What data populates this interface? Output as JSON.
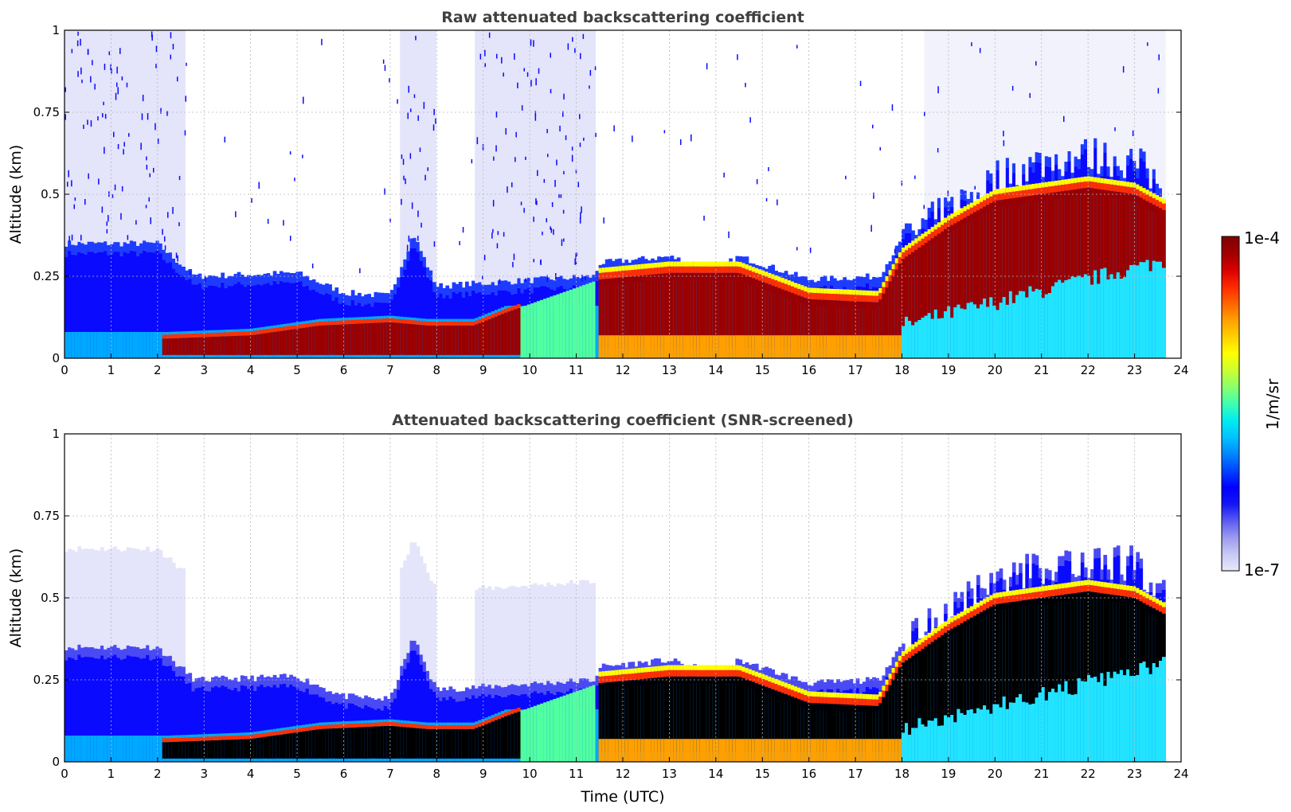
{
  "chart_data": [
    {
      "type": "heatmap",
      "title": "Raw attenuated backscattering coefficient",
      "xlabel": "",
      "ylabel": "Altitude (km)",
      "xlim": [
        0,
        24
      ],
      "ylim": [
        0,
        1
      ],
      "xticks": [
        "0",
        "1",
        "2",
        "3",
        "4",
        "5",
        "6",
        "7",
        "8",
        "9",
        "10",
        "11",
        "12",
        "13",
        "14",
        "15",
        "16",
        "17",
        "18",
        "19",
        "20",
        "21",
        "22",
        "23",
        "24"
      ],
      "yticks": [
        "0",
        "0.25",
        "0.5",
        "0.75",
        "1"
      ],
      "grid": true,
      "data_end_time": 23.65,
      "layer_top_km": [
        [
          0,
          0.35
        ],
        [
          2,
          0.35
        ],
        [
          2.8,
          0.25
        ],
        [
          5,
          0.26
        ],
        [
          6,
          0.2
        ],
        [
          7,
          0.19
        ],
        [
          7.5,
          0.38
        ],
        [
          8,
          0.22
        ],
        [
          11.4,
          0.25
        ],
        [
          11.5,
          0.29
        ],
        [
          13,
          0.31
        ],
        [
          14,
          0.27
        ],
        [
          14.5,
          0.31
        ],
        [
          16,
          0.24
        ],
        [
          17.5,
          0.25
        ],
        [
          18,
          0.36
        ],
        [
          19,
          0.45
        ],
        [
          20,
          0.55
        ],
        [
          21,
          0.6
        ],
        [
          22,
          0.62
        ],
        [
          23,
          0.6
        ],
        [
          23.65,
          0.52
        ]
      ],
      "high_backscatter_top_km": [
        [
          2.2,
          0.06
        ],
        [
          4,
          0.07
        ],
        [
          5.5,
          0.1
        ],
        [
          7,
          0.11
        ],
        [
          7.8,
          0.1
        ],
        [
          8.8,
          0.1
        ],
        [
          9.5,
          0.14
        ],
        [
          11.5,
          0.24
        ],
        [
          13,
          0.26
        ],
        [
          14.5,
          0.26
        ],
        [
          16,
          0.18
        ],
        [
          17.5,
          0.17
        ],
        [
          18,
          0.3
        ],
        [
          19,
          0.4
        ],
        [
          20,
          0.48
        ],
        [
          21,
          0.5
        ],
        [
          22,
          0.52
        ],
        [
          23,
          0.5
        ],
        [
          23.65,
          0.45
        ]
      ],
      "color_range": [
        "1e-7",
        "1e-4"
      ],
      "units": "1/m/sr"
    },
    {
      "type": "heatmap",
      "title": "Attenuated backscattering coefficient (SNR-screened)",
      "xlabel": "Time (UTC)",
      "ylabel": "Altitude (km)",
      "xlim": [
        0,
        24
      ],
      "ylim": [
        0,
        1
      ],
      "xticks": [
        "0",
        "1",
        "2",
        "3",
        "4",
        "5",
        "6",
        "7",
        "8",
        "9",
        "10",
        "11",
        "12",
        "13",
        "14",
        "15",
        "16",
        "17",
        "18",
        "19",
        "20",
        "21",
        "22",
        "23",
        "24"
      ],
      "yticks": [
        "0",
        "0.25",
        "0.5",
        "0.75",
        "1"
      ],
      "grid": true,
      "data_end_time": 23.65,
      "saturated_regions_black": true,
      "color_range": [
        "1e-7",
        "1e-4"
      ],
      "units": "1/m/sr"
    }
  ],
  "colorbar": {
    "max_label": "1e-4",
    "min_label": "1e-7",
    "units_label": "1/m/sr",
    "colors": [
      "#e8e8fb",
      "#c8c8f4",
      "#9a9af0",
      "#5a5af2",
      "#1414f6",
      "#0000ff",
      "#0044ff",
      "#0088ff",
      "#00c4ff",
      "#00ecf0",
      "#40ffb0",
      "#8cff6c",
      "#ccff30",
      "#ffff00",
      "#ffd000",
      "#ffa000",
      "#ff6400",
      "#ff2800",
      "#d80000",
      "#a00000",
      "#800000"
    ]
  }
}
